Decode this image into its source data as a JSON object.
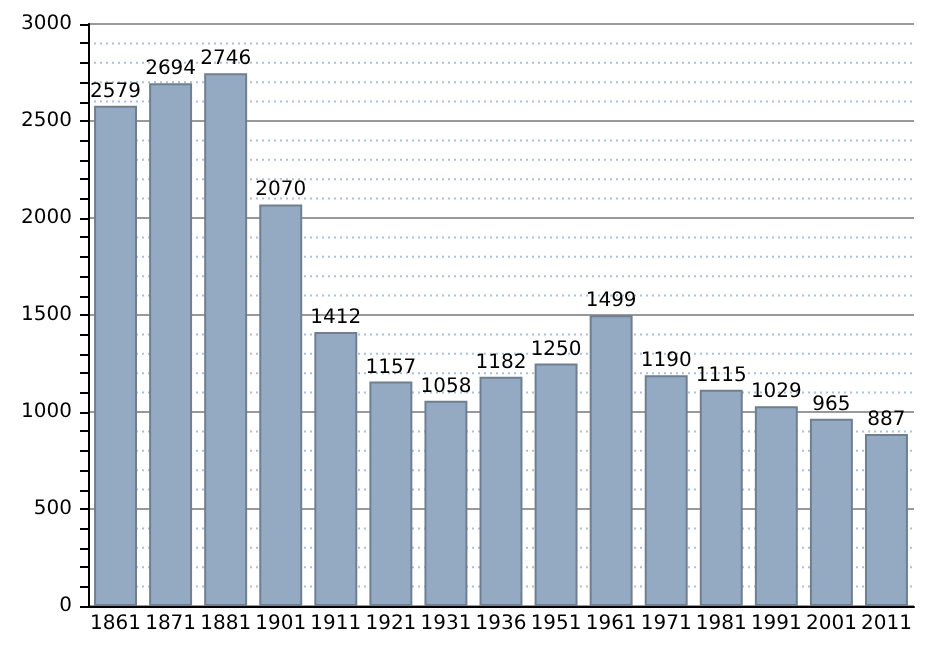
{
  "chart_data": {
    "type": "bar",
    "categories": [
      "1861",
      "1871",
      "1881",
      "1901",
      "1911",
      "1921",
      "1931",
      "1936",
      "1951",
      "1961",
      "1971",
      "1981",
      "1991",
      "2001",
      "2011"
    ],
    "values": [
      2579,
      2694,
      2746,
      2070,
      1412,
      1157,
      1058,
      1182,
      1250,
      1499,
      1190,
      1115,
      1029,
      965,
      887
    ],
    "color": "#94aac3",
    "ylim": [
      0,
      3000
    ],
    "yticks": [
      0,
      {
        "value": 100,
        "label": null
      },
      {
        "value": 200,
        "label": null
      },
      {
        "value": 300,
        "label": null
      },
      {
        "value": 400,
        "label": null
      },
      500,
      {
        "value": 600,
        "label": null
      },
      {
        "value": 700,
        "label": null
      },
      {
        "value": 800,
        "label": null
      },
      {
        "value": 900,
        "label": null
      },
      1000,
      {
        "value": 1100,
        "label": null
      },
      {
        "value": 1200,
        "label": null
      },
      {
        "value": 1300,
        "label": null
      },
      {
        "value": 1400,
        "label": null
      },
      1500,
      {
        "value": 1600,
        "label": null
      },
      {
        "value": 1700,
        "label": null
      },
      {
        "value": 1800,
        "label": null
      },
      {
        "value": 1900,
        "label": null
      },
      2000,
      {
        "value": 2100,
        "label": null
      },
      {
        "value": 2200,
        "label": null
      },
      {
        "value": 2300,
        "label": null
      },
      {
        "value": 2400,
        "label": null
      },
      2500,
      {
        "value": 2600,
        "label": null
      },
      {
        "value": 2700,
        "label": null
      },
      {
        "value": 2800,
        "label": null
      },
      {
        "value": 2900,
        "label": null
      },
      3000
    ],
    "grid": true,
    "data_labels": true
  }
}
